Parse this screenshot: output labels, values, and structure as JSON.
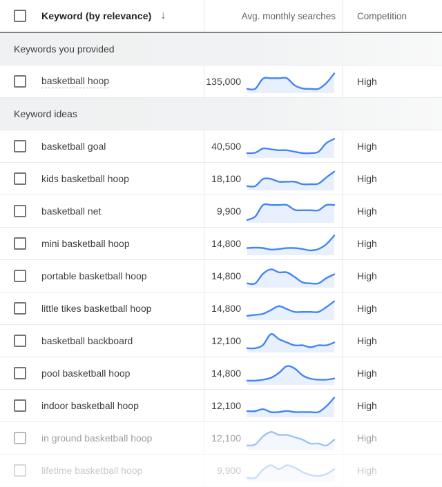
{
  "header": {
    "keyword_label": "Keyword (by relevance)",
    "sort_icon": "↓",
    "searches_label": "Avg. monthly searches",
    "competition_label": "Competition"
  },
  "colors": {
    "spark_line": "#4285f4",
    "spark_fill": "#e8f0fe",
    "header_border": "#7e8387",
    "row_border": "#e8eaed",
    "section_bg": "#f1f2f3"
  },
  "table": {
    "groups": [
      {
        "label": "Keywords you provided",
        "rows": [
          {
            "keyword": "basketball hoop",
            "searches": "135,000",
            "competition": "High",
            "provided": true,
            "opacity": 1,
            "trend": [
              0.15,
              0.15,
              0.68,
              0.7,
              0.7,
              0.7,
              0.33,
              0.17,
              0.15,
              0.15,
              0.45,
              0.95
            ]
          }
        ]
      },
      {
        "label": "Keyword ideas",
        "rows": [
          {
            "keyword": "basketball goal",
            "searches": "40,500",
            "competition": "High",
            "provided": false,
            "opacity": 1,
            "trend": [
              0.18,
              0.2,
              0.42,
              0.38,
              0.33,
              0.33,
              0.25,
              0.18,
              0.18,
              0.25,
              0.7,
              0.92
            ]
          },
          {
            "keyword": "kids basketball hoop",
            "searches": "18,100",
            "competition": "High",
            "provided": false,
            "opacity": 1,
            "trend": [
              0.15,
              0.15,
              0.52,
              0.52,
              0.38,
              0.38,
              0.38,
              0.25,
              0.25,
              0.28,
              0.6,
              0.9
            ]
          },
          {
            "keyword": "basketball net",
            "searches": "9,900",
            "competition": "High",
            "provided": false,
            "opacity": 1,
            "trend": [
              0.08,
              0.25,
              0.85,
              0.85,
              0.85,
              0.85,
              0.6,
              0.58,
              0.58,
              0.58,
              0.85,
              0.85
            ]
          },
          {
            "keyword": "mini basketball hoop",
            "searches": "14,800",
            "competition": "High",
            "provided": false,
            "opacity": 1,
            "trend": [
              0.3,
              0.32,
              0.3,
              0.22,
              0.25,
              0.3,
              0.3,
              0.25,
              0.18,
              0.25,
              0.5,
              0.95
            ]
          },
          {
            "keyword": "portable basketball hoop",
            "searches": "14,800",
            "competition": "High",
            "provided": false,
            "opacity": 1,
            "trend": [
              0.15,
              0.15,
              0.65,
              0.88,
              0.72,
              0.72,
              0.48,
              0.2,
              0.15,
              0.15,
              0.42,
              0.62
            ]
          },
          {
            "keyword": "little tikes basketball hoop",
            "searches": "14,800",
            "competition": "High",
            "provided": false,
            "opacity": 1,
            "trend": [
              0.15,
              0.2,
              0.25,
              0.45,
              0.65,
              0.5,
              0.35,
              0.35,
              0.35,
              0.35,
              0.6,
              0.9
            ]
          },
          {
            "keyword": "basketball backboard",
            "searches": "12,100",
            "competition": "High",
            "provided": false,
            "opacity": 1,
            "trend": [
              0.15,
              0.15,
              0.32,
              0.88,
              0.62,
              0.45,
              0.3,
              0.3,
              0.2,
              0.3,
              0.3,
              0.45
            ]
          },
          {
            "keyword": "pool basketball hoop",
            "searches": "14,800",
            "competition": "High",
            "provided": false,
            "opacity": 1,
            "trend": [
              0.15,
              0.15,
              0.2,
              0.3,
              0.55,
              0.9,
              0.78,
              0.42,
              0.25,
              0.2,
              0.2,
              0.26
            ]
          },
          {
            "keyword": "indoor basketball hoop",
            "searches": "12,100",
            "competition": "High",
            "provided": false,
            "opacity": 1,
            "trend": [
              0.25,
              0.25,
              0.35,
              0.2,
              0.2,
              0.26,
              0.2,
              0.2,
              0.2,
              0.2,
              0.5,
              0.95
            ]
          },
          {
            "keyword": "in ground basketball hoop",
            "searches": "12,100",
            "competition": "High",
            "provided": false,
            "opacity": 0.5,
            "trend": [
              0.15,
              0.2,
              0.62,
              0.85,
              0.7,
              0.7,
              0.58,
              0.45,
              0.25,
              0.25,
              0.15,
              0.45
            ]
          },
          {
            "keyword": "lifetime basketball hoop",
            "searches": "9,900",
            "competition": "High",
            "provided": false,
            "opacity": 0.28,
            "trend": [
              0.15,
              0.15,
              0.58,
              0.8,
              0.6,
              0.8,
              0.68,
              0.45,
              0.3,
              0.25,
              0.35,
              0.6
            ]
          }
        ]
      }
    ]
  }
}
